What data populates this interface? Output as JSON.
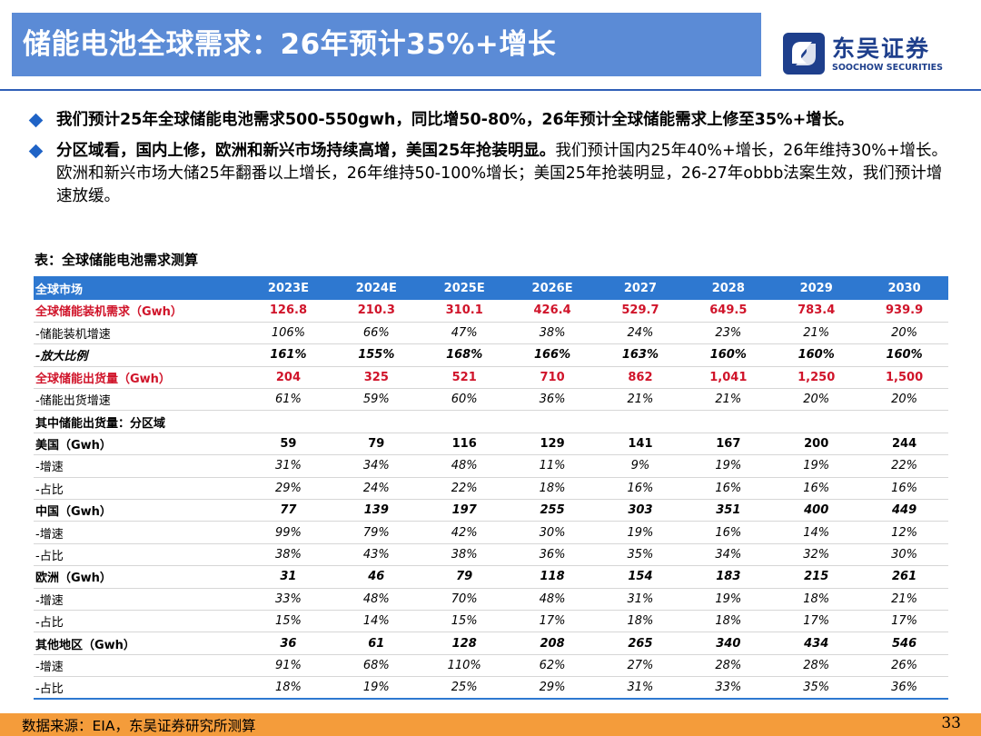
{
  "header": {
    "title": "储能电池全球需求：26年预计35%+增长",
    "logo_cn": "东吴证券",
    "logo_en": "SOOCHOW SECURITIES",
    "logo_icon": "soochow-logo-icon"
  },
  "bullets": [
    {
      "strong": "我们预计25年全球储能电池需求500-550gwh，同比增50-80%，26年预计全球储能需求上修至35%+增长。",
      "text": ""
    },
    {
      "strong": "分区域看，国内上修，欧洲和新兴市场持续高增，美国25年抢装明显。",
      "text": "我们预计国内25年40%+增长，26年维持30%+增长。欧洲和新兴市场大储25年翻番以上增长，26年维持50-100%增长；美国25年抢装明显，26-27年obbb法案生效，我们预计增速放缓。"
    }
  ],
  "table": {
    "caption": "表：全球储能电池需求测算",
    "header_label": "全球市场",
    "years": [
      "2023E",
      "2024E",
      "2025E",
      "2026E",
      "2027",
      "2028",
      "2029",
      "2030"
    ],
    "rows": [
      {
        "style": "red",
        "label": "全球储能装机需求（Gwh）",
        "values": [
          "126.8",
          "210.3",
          "310.1",
          "426.4",
          "529.7",
          "649.5",
          "783.4",
          "939.9"
        ]
      },
      {
        "style": "ital",
        "label": "-储能装机增速",
        "values": [
          "106%",
          "66%",
          "47%",
          "38%",
          "24%",
          "23%",
          "21%",
          "20%"
        ]
      },
      {
        "style": "boldital",
        "label": "-放大比例",
        "values": [
          "161%",
          "155%",
          "168%",
          "166%",
          "163%",
          "160%",
          "160%",
          "160%"
        ]
      },
      {
        "style": "red",
        "label": "全球储能出货量（Gwh）",
        "values": [
          "204",
          "325",
          "521",
          "710",
          "862",
          "1,041",
          "1,250",
          "1,500"
        ]
      },
      {
        "style": "ital",
        "label": "-储能出货增速",
        "values": [
          "61%",
          "59%",
          "60%",
          "36%",
          "21%",
          "21%",
          "20%",
          "20%"
        ]
      },
      {
        "style": "subhead",
        "label": "其中储能出货量：分区域",
        "values": []
      },
      {
        "style": "region upright",
        "label": "美国（Gwh）",
        "values": [
          "59",
          "79",
          "116",
          "129",
          "141",
          "167",
          "200",
          "244"
        ]
      },
      {
        "style": "ital",
        "label": "-增速",
        "values": [
          "31%",
          "34%",
          "48%",
          "11%",
          "9%",
          "19%",
          "19%",
          "22%"
        ]
      },
      {
        "style": "ital",
        "label": "-占比",
        "values": [
          "29%",
          "24%",
          "22%",
          "18%",
          "16%",
          "16%",
          "16%",
          "16%"
        ]
      },
      {
        "style": "region",
        "label": "中国（Gwh）",
        "values": [
          "77",
          "139",
          "197",
          "255",
          "303",
          "351",
          "400",
          "449"
        ]
      },
      {
        "style": "ital",
        "label": "-增速",
        "values": [
          "99%",
          "79%",
          "42%",
          "30%",
          "19%",
          "16%",
          "14%",
          "12%"
        ]
      },
      {
        "style": "ital",
        "label": "-占比",
        "values": [
          "38%",
          "43%",
          "38%",
          "36%",
          "35%",
          "34%",
          "32%",
          "30%"
        ]
      },
      {
        "style": "region",
        "label": "欧洲（Gwh）",
        "values": [
          "31",
          "46",
          "79",
          "118",
          "154",
          "183",
          "215",
          "261"
        ]
      },
      {
        "style": "ital",
        "label": "-增速",
        "values": [
          "33%",
          "48%",
          "70%",
          "48%",
          "31%",
          "19%",
          "18%",
          "21%"
        ]
      },
      {
        "style": "ital",
        "label": "-占比",
        "values": [
          "15%",
          "14%",
          "15%",
          "17%",
          "18%",
          "18%",
          "17%",
          "17%"
        ]
      },
      {
        "style": "region",
        "label": "其他地区（Gwh）",
        "values": [
          "36",
          "61",
          "128",
          "208",
          "265",
          "340",
          "434",
          "546"
        ]
      },
      {
        "style": "ital",
        "label": "-增速",
        "values": [
          "91%",
          "68%",
          "110%",
          "62%",
          "27%",
          "28%",
          "28%",
          "26%"
        ]
      },
      {
        "style": "ital last",
        "label": "-占比",
        "values": [
          "18%",
          "19%",
          "25%",
          "29%",
          "31%",
          "33%",
          "35%",
          "36%"
        ]
      }
    ]
  },
  "footer": {
    "source": "数据来源：EIA，东吴证券研究所测算",
    "page_number": "33"
  },
  "colors": {
    "title_bg": "#5b8bd6",
    "brand_blue": "#1e3f8c",
    "table_header": "#2e78d0",
    "highlight_red": "#d0142a",
    "footer_orange": "#f49c3b"
  }
}
